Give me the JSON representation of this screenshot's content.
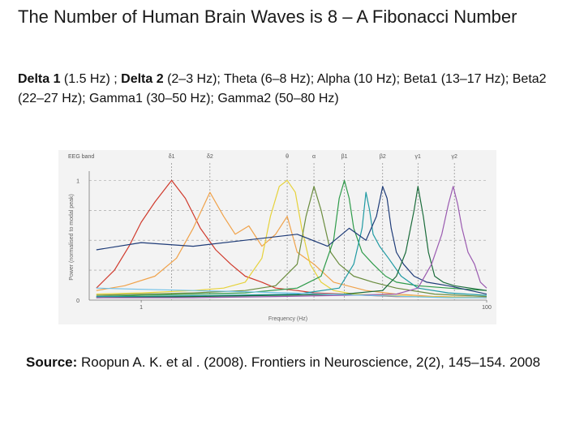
{
  "slide": {
    "title": "The Number of Human Brain Waves is 8 – A Fibonacci Number",
    "bands_line": [
      {
        "name": "Delta 1",
        "range": " (1.5 Hz) ; "
      },
      {
        "name": "Delta 2",
        "range": " (2–3 Hz); "
      },
      {
        "name": "",
        "range": "Theta (6–8 Hz); Alpha (10 Hz); Beta1 (13–17 Hz); Beta2 (22–27 Hz); Gamma1 (30–50 Hz); Gamma2 (50–80 Hz)"
      }
    ],
    "source_label": "Source:",
    "source_text": " Roopun A. K. et al . (2008). Frontiers in  Neuroscience, 2(2), 145–154. 2008"
  },
  "chart_data": {
    "type": "line",
    "title": "",
    "header_label": "EEG band",
    "xlabel": "Frequency (Hz)",
    "ylabel": "Power (normalised to modal peak)",
    "xscale": "log",
    "xlim": [
      0.5,
      100
    ],
    "ylim": [
      0,
      1.05
    ],
    "x_tick_labels": [
      {
        "value": 1,
        "label": "1"
      },
      {
        "value": 100,
        "label": "100"
      }
    ],
    "y_tick_labels": [
      {
        "value": 0,
        "label": "0"
      },
      {
        "value": 1,
        "label": "1"
      }
    ],
    "y_dashed_levels": [
      0.25,
      0.5,
      0.75,
      1.0
    ],
    "band_markers": [
      {
        "label": "δ1",
        "freq": 1.5
      },
      {
        "label": "δ2",
        "freq": 2.5
      },
      {
        "label": "θ",
        "freq": 7
      },
      {
        "label": "α",
        "freq": 10
      },
      {
        "label": "β1",
        "freq": 15
      },
      {
        "label": "β2",
        "freq": 25
      },
      {
        "label": "γ1",
        "freq": 40
      },
      {
        "label": "γ2",
        "freq": 65
      }
    ],
    "grid": false,
    "series": [
      {
        "color": "#d03a2c",
        "x": [
          0.55,
          0.7,
          0.85,
          1.0,
          1.2,
          1.5,
          1.8,
          2.2,
          2.7,
          3.3,
          4,
          5,
          6,
          8,
          10,
          15,
          20,
          30,
          50,
          100
        ],
        "y": [
          0.1,
          0.25,
          0.45,
          0.65,
          0.82,
          1.0,
          0.85,
          0.6,
          0.42,
          0.3,
          0.2,
          0.15,
          0.1,
          0.08,
          0.06,
          0.05,
          0.04,
          0.03,
          0.03,
          0.02
        ]
      },
      {
        "color": "#f0a24a",
        "x": [
          0.55,
          0.8,
          1.2,
          1.6,
          2.0,
          2.5,
          3.0,
          3.5,
          4.2,
          5,
          6,
          7,
          8,
          10,
          13,
          20,
          30,
          50,
          100
        ],
        "y": [
          0.08,
          0.12,
          0.2,
          0.35,
          0.6,
          0.9,
          0.7,
          0.55,
          0.62,
          0.45,
          0.55,
          0.7,
          0.4,
          0.3,
          0.15,
          0.08,
          0.05,
          0.03,
          0.02
        ]
      },
      {
        "color": "#e6d23a",
        "x": [
          0.55,
          1,
          2,
          3,
          4,
          5,
          5.6,
          6.3,
          7,
          7.8,
          8.5,
          9.5,
          11,
          13,
          17,
          25,
          40,
          100
        ],
        "y": [
          0.05,
          0.06,
          0.08,
          0.1,
          0.15,
          0.35,
          0.7,
          0.95,
          1.0,
          0.9,
          0.6,
          0.3,
          0.15,
          0.08,
          0.05,
          0.04,
          0.03,
          0.02
        ]
      },
      {
        "color": "#6a8c3e",
        "x": [
          0.55,
          1,
          2,
          4,
          6,
          8,
          9,
          10,
          11,
          12.5,
          14,
          17,
          22,
          30,
          50,
          100
        ],
        "y": [
          0.04,
          0.05,
          0.06,
          0.08,
          0.12,
          0.3,
          0.7,
          0.95,
          0.75,
          0.4,
          0.3,
          0.2,
          0.15,
          0.1,
          0.05,
          0.03
        ]
      },
      {
        "color": "#2e9b4a",
        "x": [
          0.55,
          1,
          2,
          4,
          8,
          11,
          13,
          14,
          15,
          16,
          17,
          19,
          22,
          26,
          30,
          40,
          60,
          100
        ],
        "y": [
          0.03,
          0.04,
          0.05,
          0.06,
          0.1,
          0.2,
          0.5,
          0.85,
          1.0,
          0.85,
          0.6,
          0.4,
          0.3,
          0.2,
          0.15,
          0.12,
          0.1,
          0.08
        ]
      },
      {
        "color": "#1f9aa3",
        "x": [
          0.55,
          1,
          3,
          8,
          14,
          17,
          19,
          20,
          21,
          22,
          24,
          27,
          32,
          40,
          60,
          100
        ],
        "y": [
          0.03,
          0.03,
          0.04,
          0.05,
          0.1,
          0.3,
          0.6,
          0.9,
          0.75,
          0.55,
          0.45,
          0.35,
          0.2,
          0.1,
          0.06,
          0.04
        ]
      },
      {
        "color": "#1f3c78",
        "x": [
          0.55,
          1,
          2,
          4,
          8,
          12,
          16,
          20,
          23,
          25,
          26.5,
          28,
          30,
          33,
          38,
          45,
          60,
          100
        ],
        "y": [
          0.42,
          0.48,
          0.45,
          0.5,
          0.55,
          0.45,
          0.6,
          0.5,
          0.7,
          0.95,
          0.85,
          0.6,
          0.4,
          0.3,
          0.2,
          0.15,
          0.12,
          0.05
        ]
      },
      {
        "color": "#1a6b3a",
        "x": [
          0.55,
          2,
          6,
          15,
          25,
          30,
          34,
          38,
          40,
          43,
          46,
          50,
          56,
          65,
          80,
          100
        ],
        "y": [
          0.02,
          0.03,
          0.04,
          0.05,
          0.08,
          0.2,
          0.4,
          0.75,
          0.95,
          0.7,
          0.4,
          0.2,
          0.15,
          0.12,
          0.1,
          0.08
        ]
      },
      {
        "color": "#9a5ab0",
        "x": [
          0.55,
          2,
          6,
          15,
          30,
          40,
          48,
          55,
          60,
          64,
          68,
          72,
          78,
          85,
          92,
          100
        ],
        "y": [
          0.02,
          0.02,
          0.03,
          0.04,
          0.05,
          0.1,
          0.3,
          0.55,
          0.8,
          0.95,
          0.8,
          0.6,
          0.4,
          0.3,
          0.15,
          0.1
        ]
      },
      {
        "color": "#6ec0e8",
        "x": [
          0.55,
          1,
          2,
          4,
          7,
          12,
          20,
          35,
          60,
          100
        ],
        "y": [
          0.1,
          0.09,
          0.08,
          0.07,
          0.06,
          0.05,
          0.04,
          0.03,
          0.02,
          0.02
        ]
      }
    ]
  }
}
